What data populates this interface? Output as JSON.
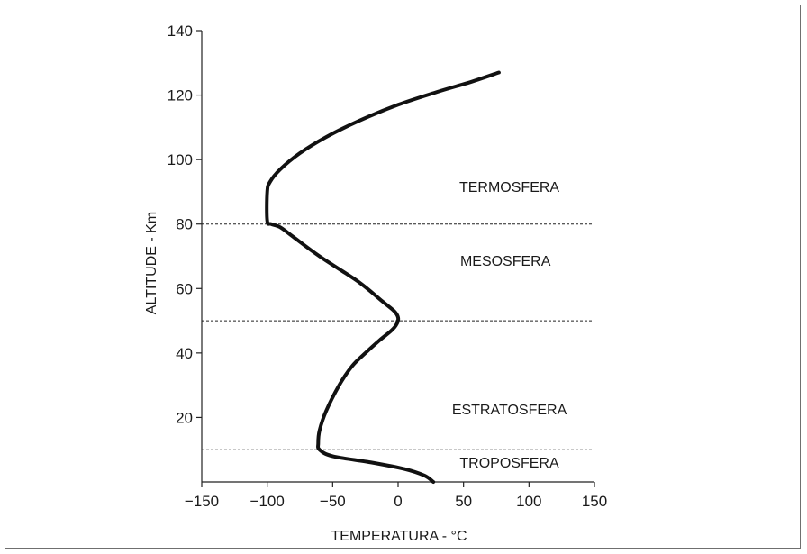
{
  "chart_data": {
    "type": "line",
    "title": "",
    "xlabel": "TEMPERATURA - °C",
    "ylabel": "ALTITUDE - Km",
    "xlim": [
      -150,
      150
    ],
    "ylim": [
      0,
      140
    ],
    "x_ticks": [
      -150,
      -100,
      -50,
      0,
      50,
      100,
      150
    ],
    "x_tick_labels": [
      "−150",
      "−100",
      "−50",
      "0",
      "50",
      "100",
      "150"
    ],
    "y_ticks": [
      20,
      40,
      60,
      80,
      100,
      120,
      140
    ],
    "y_tick_labels": [
      "20",
      "40",
      "60",
      "80",
      "100",
      "120",
      "140"
    ],
    "grid": false,
    "boundaries": [
      10,
      50,
      80
    ],
    "regions": [
      {
        "label": "TERMOSFERA",
        "x": 85,
        "y": 90
      },
      {
        "label": "MESOSFERA",
        "x": 82,
        "y": 67
      },
      {
        "label": "ESTRATOSFERA",
        "x": 85,
        "y": 21
      },
      {
        "label": "TROPOSFERA",
        "x": 85,
        "y": 4.5
      }
    ],
    "series": [
      {
        "color": "#111111",
        "x": [
          27,
          20,
          5,
          -20,
          -50,
          -60,
          -61,
          -60,
          -55,
          -45,
          -35,
          -25,
          -14,
          -5,
          -1,
          0,
          -3,
          -12,
          -30,
          -60,
          -80,
          -90,
          -97,
          -100,
          -100,
          -98,
          -90,
          -75,
          -55,
          -30,
          0,
          30,
          55,
          77
        ],
        "y": [
          0,
          2,
          4,
          6,
          8,
          10,
          12,
          16,
          22,
          30,
          36,
          40,
          44,
          47,
          49,
          51,
          53,
          56,
          62,
          70,
          76,
          79,
          80,
          81,
          90,
          93,
          97,
          102,
          107,
          112,
          117,
          121,
          124,
          127
        ]
      }
    ]
  }
}
